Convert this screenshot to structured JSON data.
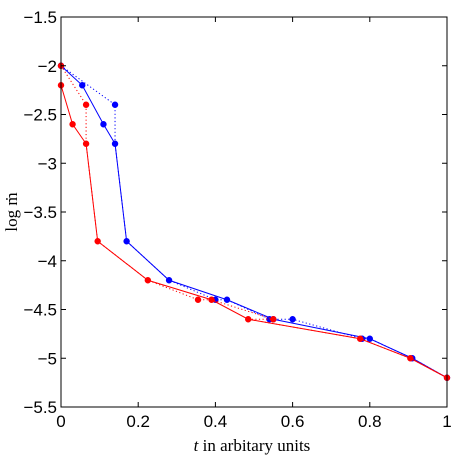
{
  "chart_data": {
    "type": "line",
    "xlabel": {
      "italic": "t",
      "rest": " in arbitary units"
    },
    "ylabel": "log ṁ",
    "xlim": [
      0,
      1
    ],
    "ylim": [
      -5.5,
      -1.5
    ],
    "xticks": [
      0,
      0.2,
      0.4,
      0.6,
      0.8,
      1
    ],
    "xtick_labels": [
      "0",
      "0.2",
      "0.4",
      "0.6",
      "0.8",
      "1"
    ],
    "yticks": [
      -1.5,
      -2,
      -2.5,
      -3,
      -3.5,
      -4,
      -4.5,
      -5,
      -5.5
    ],
    "ytick_labels": [
      "−1.5",
      "−2",
      "−2.5",
      "−3",
      "−3.5",
      "−4",
      "−4.5",
      "−5",
      "−5.5"
    ],
    "grid": false,
    "series": [
      {
        "color": "#0000ff",
        "line_points": [
          [
            0,
            -2.0
          ],
          [
            0.055,
            -2.2
          ],
          [
            0.11,
            -2.6
          ],
          [
            0.14,
            -2.8
          ],
          [
            0.17,
            -3.8
          ],
          [
            0.28,
            -4.2
          ],
          [
            0.43,
            -4.4
          ],
          [
            0.55,
            -4.6
          ],
          [
            0.8,
            -4.8
          ],
          [
            0.91,
            -5.0
          ],
          [
            1.0,
            -5.2
          ]
        ],
        "dotted_points": [
          [
            0,
            -2.0
          ],
          [
            0.14,
            -2.4
          ],
          [
            0.14,
            -2.8
          ],
          [
            0.17,
            -3.8
          ],
          [
            0.28,
            -4.2
          ],
          [
            0.4,
            -4.4
          ],
          [
            0.43,
            -4.4
          ],
          [
            0.54,
            -4.6
          ],
          [
            0.6,
            -4.6
          ],
          [
            0.78,
            -4.8
          ],
          [
            0.8,
            -4.8
          ],
          [
            0.91,
            -5.0
          ],
          [
            1.0,
            -5.2
          ]
        ]
      },
      {
        "color": "#ff0000",
        "line_points": [
          [
            0,
            -2.2
          ],
          [
            0.03,
            -2.6
          ],
          [
            0.065,
            -2.8
          ],
          [
            0.095,
            -3.8
          ],
          [
            0.225,
            -4.2
          ],
          [
            0.39,
            -4.4
          ],
          [
            0.485,
            -4.6
          ],
          [
            0.775,
            -4.8
          ],
          [
            0.905,
            -5.0
          ],
          [
            1.0,
            -5.2
          ]
        ],
        "dotted_points": [
          [
            0,
            -2.0
          ],
          [
            0.065,
            -2.4
          ],
          [
            0.065,
            -2.8
          ],
          [
            0.095,
            -3.8
          ],
          [
            0.225,
            -4.2
          ],
          [
            0.355,
            -4.4
          ],
          [
            0.39,
            -4.4
          ],
          [
            0.55,
            -4.6
          ],
          [
            0.485,
            -4.6
          ],
          [
            0.775,
            -4.8
          ],
          [
            0.905,
            -5.0
          ],
          [
            1.0,
            -5.2
          ]
        ]
      }
    ]
  }
}
